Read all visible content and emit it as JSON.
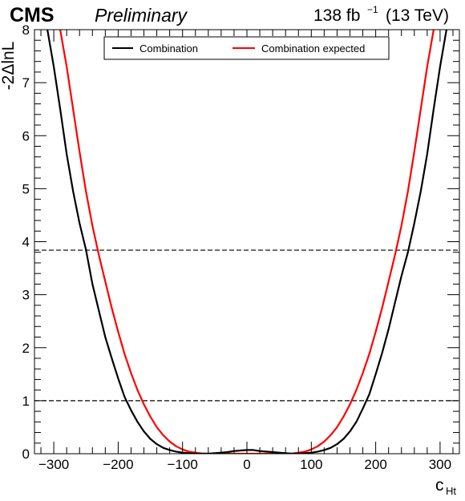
{
  "header": {
    "experiment": "CMS",
    "status": "Preliminary",
    "lumi_value": "138 fb",
    "lumi_exponent": "−1",
    "energy": "(13 TeV)"
  },
  "chart_data": {
    "type": "line",
    "xlabel_main": "c",
    "xlabel_sub": "Ht",
    "ylabel": "-2ΔlnL",
    "xlim": [
      -330,
      330
    ],
    "ylim": [
      0,
      8
    ],
    "x_ticks": [
      -300,
      -200,
      -100,
      0,
      100,
      200,
      300
    ],
    "y_ticks": [
      0,
      1,
      2,
      3,
      4,
      5,
      6,
      7,
      8
    ],
    "grid": false,
    "legend_position": "top",
    "reference_lines": [
      1,
      3.84
    ],
    "colors": {
      "observed": "#000000",
      "expected": "#ff0000"
    },
    "series": [
      {
        "name": "Combination",
        "color": "#000000",
        "x": [
          -310,
          -300,
          -290,
          -280,
          -270,
          -260,
          -250,
          -240,
          -230,
          -220,
          -210,
          -200,
          -190,
          -180,
          -170,
          -160,
          -150,
          -140,
          -130,
          -120,
          -110,
          -100,
          -90,
          -80,
          -70,
          -60,
          -50,
          -40,
          -30,
          -20,
          -10,
          0,
          10,
          20,
          30,
          40,
          50,
          60,
          70,
          80,
          90,
          100,
          110,
          120,
          130,
          140,
          150,
          160,
          170,
          180,
          190,
          200,
          210,
          220,
          230,
          240,
          250,
          260,
          270,
          280,
          290,
          300,
          310
        ],
        "y": [
          8.0,
          7.3,
          6.5,
          5.65,
          4.95,
          4.35,
          3.85,
          3.2,
          2.7,
          2.2,
          1.8,
          1.42,
          1.07,
          0.82,
          0.6,
          0.42,
          0.28,
          0.18,
          0.11,
          0.07,
          0.04,
          0.02,
          0.01,
          0.0,
          0.0,
          0.0,
          0.01,
          0.02,
          0.03,
          0.05,
          0.06,
          0.07,
          0.07,
          0.05,
          0.04,
          0.03,
          0.02,
          0.01,
          0.0,
          0.0,
          0.01,
          0.02,
          0.04,
          0.07,
          0.11,
          0.18,
          0.28,
          0.42,
          0.6,
          0.85,
          1.12,
          1.5,
          1.9,
          2.35,
          2.85,
          3.35,
          3.8,
          4.35,
          4.95,
          5.65,
          6.5,
          7.3,
          8.0
        ]
      },
      {
        "name": "Combination expected",
        "color": "#ff0000",
        "x": [
          -290,
          -280,
          -270,
          -260,
          -250,
          -240,
          -230,
          -220,
          -210,
          -200,
          -190,
          -180,
          -170,
          -160,
          -150,
          -140,
          -130,
          -120,
          -110,
          -100,
          -90,
          -80,
          -70,
          -60,
          -50,
          -40,
          -30,
          -20,
          -10,
          0,
          10,
          20,
          30,
          40,
          50,
          60,
          70,
          80,
          90,
          100,
          110,
          120,
          130,
          140,
          150,
          160,
          170,
          180,
          190,
          200,
          210,
          220,
          230,
          240,
          250,
          260,
          270,
          280,
          290
        ],
        "y": [
          8.0,
          7.3,
          6.5,
          5.7,
          4.95,
          4.3,
          3.75,
          3.25,
          2.75,
          2.3,
          1.88,
          1.52,
          1.2,
          0.93,
          0.7,
          0.5,
          0.35,
          0.23,
          0.14,
          0.08,
          0.04,
          0.02,
          0.005,
          0.0,
          0.0,
          0.0,
          0.0,
          0.0,
          0.0,
          0.0,
          0.0,
          0.0,
          0.0,
          0.0,
          0.0,
          0.0,
          0.005,
          0.02,
          0.04,
          0.08,
          0.14,
          0.23,
          0.35,
          0.5,
          0.7,
          0.93,
          1.2,
          1.52,
          1.88,
          2.3,
          2.75,
          3.25,
          3.75,
          4.3,
          4.95,
          5.7,
          6.5,
          7.3,
          8.0
        ]
      }
    ]
  }
}
